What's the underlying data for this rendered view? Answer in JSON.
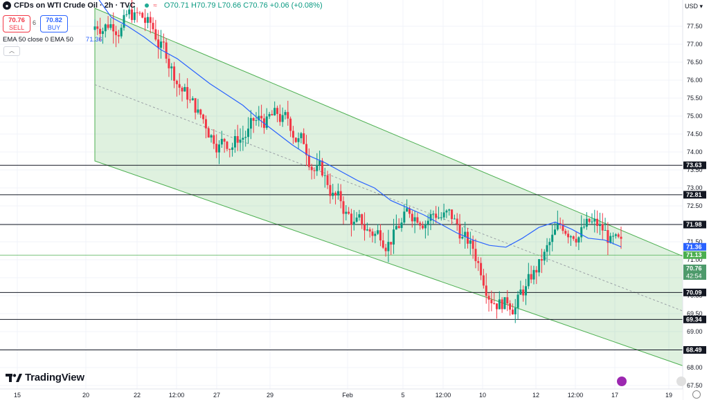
{
  "header": {
    "title": "CFDs on WTI Crude Oil · 2h · TVC",
    "ohlc": "O70.71  H70.79  L70.66  C70.76  +0.06 (+0.08%)",
    "sell_price": "70.76",
    "sell_label": "SELL",
    "buy_price": "70.82",
    "buy_label": "BUY",
    "spread": "6",
    "ema_label": "EMA 50 close 0 EMA 50",
    "ema_value": "71.36",
    "currency": "USD"
  },
  "branding": {
    "logo_text": "TradingView"
  },
  "colors": {
    "up": "#089981",
    "down": "#f23645",
    "ema": "#2962ff",
    "channel": "#4caf50"
  },
  "chart_data": {
    "type": "candlestick",
    "series": [
      {
        "name": "EMA 50",
        "type": "line",
        "points": [
          [
            0,
            78.4
          ],
          [
            10,
            77.75
          ],
          [
            20,
            77.5
          ],
          [
            30,
            77.2
          ],
          [
            40,
            76.85
          ],
          [
            50,
            76.6
          ],
          [
            60,
            76.25
          ],
          [
            70,
            75.9
          ],
          [
            80,
            75.6
          ],
          [
            90,
            75.3
          ],
          [
            100,
            74.9
          ],
          [
            110,
            74.55
          ],
          [
            120,
            74.2
          ],
          [
            130,
            73.9
          ],
          [
            140,
            73.7
          ],
          [
            150,
            73.45
          ],
          [
            160,
            73.2
          ],
          [
            170,
            73.0
          ],
          [
            180,
            72.65
          ],
          [
            190,
            72.45
          ],
          [
            200,
            72.25
          ],
          [
            210,
            72.0
          ],
          [
            220,
            71.75
          ],
          [
            230,
            71.55
          ],
          [
            240,
            71.4
          ],
          [
            250,
            71.35
          ],
          [
            260,
            71.6
          ],
          [
            270,
            71.9
          ],
          [
            280,
            72.05
          ],
          [
            290,
            71.85
          ],
          [
            300,
            71.6
          ],
          [
            310,
            71.55
          ],
          [
            320,
            71.36
          ]
        ]
      }
    ],
    "candles_x_domain": [
      0,
      320
    ],
    "ohlc_values": [
      70.71,
      70.79,
      70.66,
      70.76
    ],
    "x_axis_labels": [
      "15",
      "20",
      "22",
      "12:00",
      "27",
      "29",
      "Feb",
      "5",
      "12:00",
      "10",
      "12",
      "12:00",
      "17",
      "19"
    ],
    "y_axis_labels": [
      "77.50",
      "77.00",
      "76.50",
      "76.00",
      "75.50",
      "75.00",
      "74.50",
      "74.00",
      "73.50",
      "73.00",
      "72.50",
      "72.00",
      "71.50",
      "71.00",
      "70.50",
      "70.00",
      "69.50",
      "69.00",
      "68.50",
      "68.00",
      "67.50"
    ],
    "ylim": [
      67.4,
      78.0
    ],
    "horizontal_levels": [
      "73.63",
      "72.81",
      "71.98",
      "71.13",
      "70.09",
      "69.34",
      "68.49"
    ],
    "price_tags": {
      "ema": "71.36",
      "last_price": "70.76",
      "countdown": "42:54",
      "green_line": "71.13"
    },
    "channel": {
      "upper": [
        [
          3,
          78.0
        ],
        [
          322,
          71.1
        ]
      ],
      "lower": [
        [
          3,
          73.75
        ],
        [
          322,
          68.05
        ]
      ]
    }
  }
}
